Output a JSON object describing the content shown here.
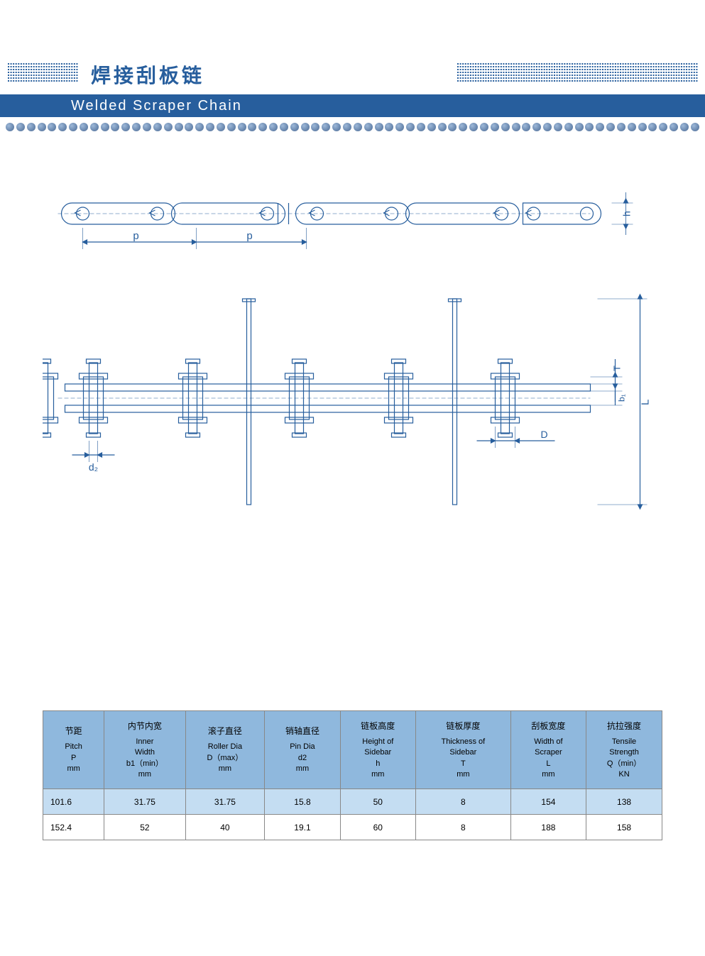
{
  "header": {
    "title_cn": "焊接刮板链",
    "title_en": "Welded Scraper  Chain"
  },
  "colors": {
    "brand_blue": "#275e9d",
    "header_row_bg": "#8fb8dd",
    "row_highlight_bg": "#c4ddf2",
    "row_normal_bg": "#ffffff",
    "diagram_stroke": "#275e9d",
    "border": "#888888"
  },
  "diagram": {
    "labels": {
      "p1": "p",
      "p2": "p",
      "h": "h",
      "d2": "d₂",
      "D": "D",
      "L": "L",
      "T": "T",
      "b1": "b₁"
    }
  },
  "table": {
    "columns": [
      {
        "cn": "节距",
        "en": "Pitch\nP\nmm"
      },
      {
        "cn": "内节内宽",
        "en": "Inner\nWidth\nb1（min）\nmm"
      },
      {
        "cn": "滚子直径",
        "en": "Roller Dia\nD（max）\nmm"
      },
      {
        "cn": "销轴直径",
        "en": "Pin Dia\nd2\nmm"
      },
      {
        "cn": "链板高度",
        "en": "Height of\nSidebar\nh\nmm"
      },
      {
        "cn": "链板厚度",
        "en": "Thickness of\nSidebar\nT\nmm"
      },
      {
        "cn": "刮板宽度",
        "en": "Width of\nScraper\nL\nmm"
      },
      {
        "cn": "抗拉强度",
        "en": "Tensile\nStrength\nQ（min）\nKN"
      }
    ],
    "rows": [
      {
        "cells": [
          "101.6",
          "31.75",
          "31.75",
          "15.8",
          "50",
          "8",
          "154",
          "138"
        ],
        "highlight": true
      },
      {
        "cells": [
          "152.4",
          "52",
          "40",
          "19.1",
          "60",
          "8",
          "188",
          "158"
        ],
        "highlight": false
      }
    ]
  }
}
